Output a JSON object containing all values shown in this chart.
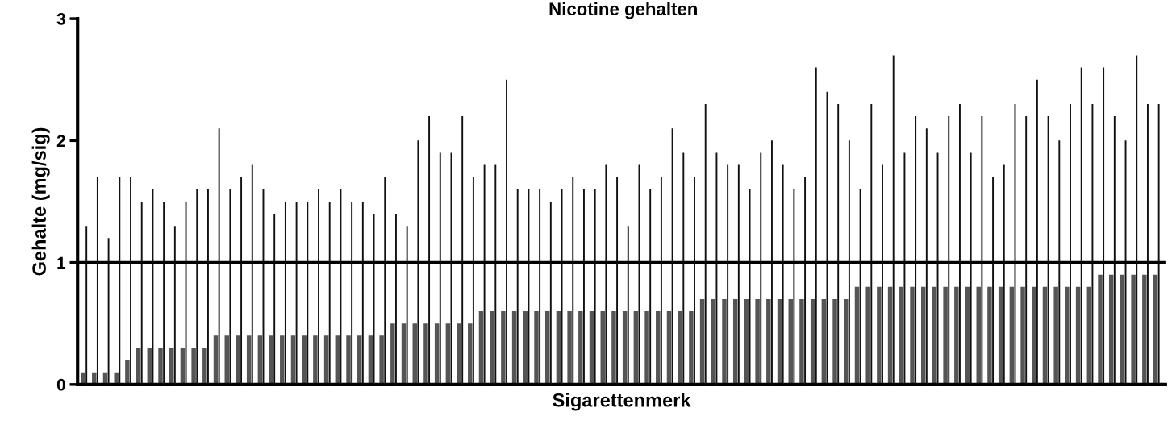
{
  "chart_data": {
    "type": "bar",
    "title": "Nicotine gehalten",
    "xlabel": "Sigarettenmerk",
    "ylabel": "Gehalte (mg/sig)",
    "categories": [
      null,
      null,
      null,
      null,
      null,
      null,
      null,
      null,
      null,
      null,
      null,
      null,
      null,
      null,
      null,
      null,
      null,
      null,
      null,
      null,
      null,
      null,
      null,
      null,
      null,
      null,
      null,
      null,
      null,
      null,
      null,
      null,
      null,
      null,
      null,
      null,
      null,
      null,
      null,
      null,
      null,
      null,
      null,
      null,
      null,
      null,
      null,
      null,
      null,
      null,
      null,
      null,
      null,
      null,
      null,
      null,
      null,
      null,
      null,
      null,
      null,
      null,
      null,
      null,
      null,
      null,
      null,
      null,
      null,
      null,
      null,
      null,
      null,
      null,
      null,
      null,
      null,
      null,
      null,
      null,
      null,
      null,
      null,
      null,
      null,
      null,
      null,
      null,
      null,
      null,
      null,
      null,
      null,
      null,
      null,
      null,
      null,
      null
    ],
    "series": [
      {
        "color": "#555555",
        "values": [
          0.1,
          0.1,
          0.1,
          0.1,
          0.2,
          0.3,
          0.3,
          0.3,
          0.3,
          0.3,
          0.3,
          0.3,
          0.4,
          0.4,
          0.4,
          0.4,
          0.4,
          0.4,
          0.4,
          0.4,
          0.4,
          0.4,
          0.4,
          0.4,
          0.4,
          0.4,
          0.4,
          0.4,
          0.5,
          0.5,
          0.5,
          0.5,
          0.5,
          0.5,
          0.5,
          0.5,
          0.6,
          0.6,
          0.6,
          0.6,
          0.6,
          0.6,
          0.6,
          0.6,
          0.6,
          0.6,
          0.6,
          0.6,
          0.6,
          0.6,
          0.6,
          0.6,
          0.6,
          0.6,
          0.6,
          0.6,
          0.7,
          0.7,
          0.7,
          0.7,
          0.7,
          0.7,
          0.7,
          0.7,
          0.7,
          0.7,
          0.7,
          0.7,
          0.7,
          0.7,
          0.8,
          0.8,
          0.8,
          0.8,
          0.8,
          0.8,
          0.8,
          0.8,
          0.8,
          0.8,
          0.8,
          0.8,
          0.8,
          0.8,
          0.8,
          0.8,
          0.8,
          0.8,
          0.8,
          0.8,
          0.8,
          0.8,
          0.9,
          0.9,
          0.9,
          0.9,
          0.9,
          0.9
        ]
      },
      {
        "color": "#111111",
        "values": [
          1.3,
          1.7,
          1.2,
          1.7,
          1.7,
          1.5,
          1.6,
          1.5,
          1.3,
          1.5,
          1.6,
          1.6,
          2.1,
          1.6,
          1.7,
          1.8,
          1.6,
          1.4,
          1.5,
          1.5,
          1.5,
          1.6,
          1.5,
          1.6,
          1.5,
          1.5,
          1.4,
          1.7,
          1.4,
          1.3,
          2.0,
          2.2,
          1.9,
          1.9,
          2.2,
          1.7,
          1.8,
          1.8,
          2.5,
          1.6,
          1.6,
          1.6,
          1.5,
          1.6,
          1.7,
          1.6,
          1.6,
          1.8,
          1.7,
          1.3,
          1.8,
          1.6,
          1.7,
          2.1,
          1.9,
          1.7,
          2.3,
          1.9,
          1.8,
          1.8,
          1.6,
          1.9,
          2.0,
          1.8,
          1.6,
          1.7,
          2.6,
          2.4,
          2.3,
          2.0,
          1.6,
          2.3,
          1.8,
          2.7,
          1.9,
          2.2,
          2.1,
          1.9,
          2.2,
          2.3,
          1.9,
          2.2,
          1.7,
          1.8,
          2.3,
          2.2,
          2.5,
          2.2,
          2.0,
          2.3,
          2.6,
          2.3,
          2.6,
          2.2,
          2.0,
          2.7,
          2.3,
          2.3
        ]
      }
    ],
    "ylim": [
      0,
      3
    ],
    "yticks": [
      0,
      1,
      2,
      3
    ],
    "grid": false,
    "legend": false,
    "ref_lines": [
      {
        "axis": "y",
        "value": 1,
        "color": "#000000",
        "line_style": "solid"
      }
    ]
  }
}
